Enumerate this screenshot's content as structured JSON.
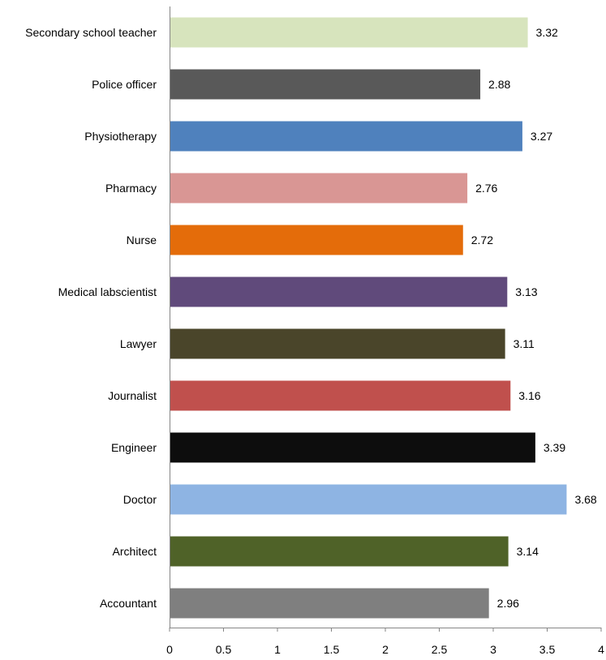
{
  "chart_data": {
    "type": "bar",
    "orientation": "horizontal",
    "title": "",
    "xlabel": "",
    "ylabel": "",
    "xlim": [
      0,
      4
    ],
    "xticks": [
      0,
      0.5,
      1,
      1.5,
      2,
      2.5,
      3,
      3.5,
      4
    ],
    "xtick_labels": [
      "0",
      "0.5",
      "1",
      "1.5",
      "2",
      "2.5",
      "3",
      "3.5",
      "4"
    ],
    "grid": false,
    "legend": "none",
    "categories": [
      "Secondary school teacher",
      "Police officer",
      "Physiotherapy",
      "Pharmacy",
      "Nurse",
      "Medical labscientist",
      "Lawyer",
      "Journalist",
      "Engineer",
      "Doctor",
      "Architect",
      "Accountant"
    ],
    "values": [
      3.32,
      2.88,
      3.27,
      2.76,
      2.72,
      3.13,
      3.11,
      3.16,
      3.39,
      3.68,
      3.14,
      2.96
    ],
    "value_labels": [
      "3.32",
      "2.88",
      "3.27",
      "2.76",
      "2.72",
      "3.13",
      "3.11",
      "3.16",
      "3.39",
      "3.68",
      "3.14",
      "2.96"
    ],
    "colors": [
      "#d7e4bd",
      "#595959",
      "#4f81bd",
      "#d99694",
      "#e46c0a",
      "#604a7b",
      "#4a452a",
      "#c0504d",
      "#0d0d0d",
      "#8eb4e3",
      "#4f6228",
      "#7f7f7f"
    ]
  }
}
